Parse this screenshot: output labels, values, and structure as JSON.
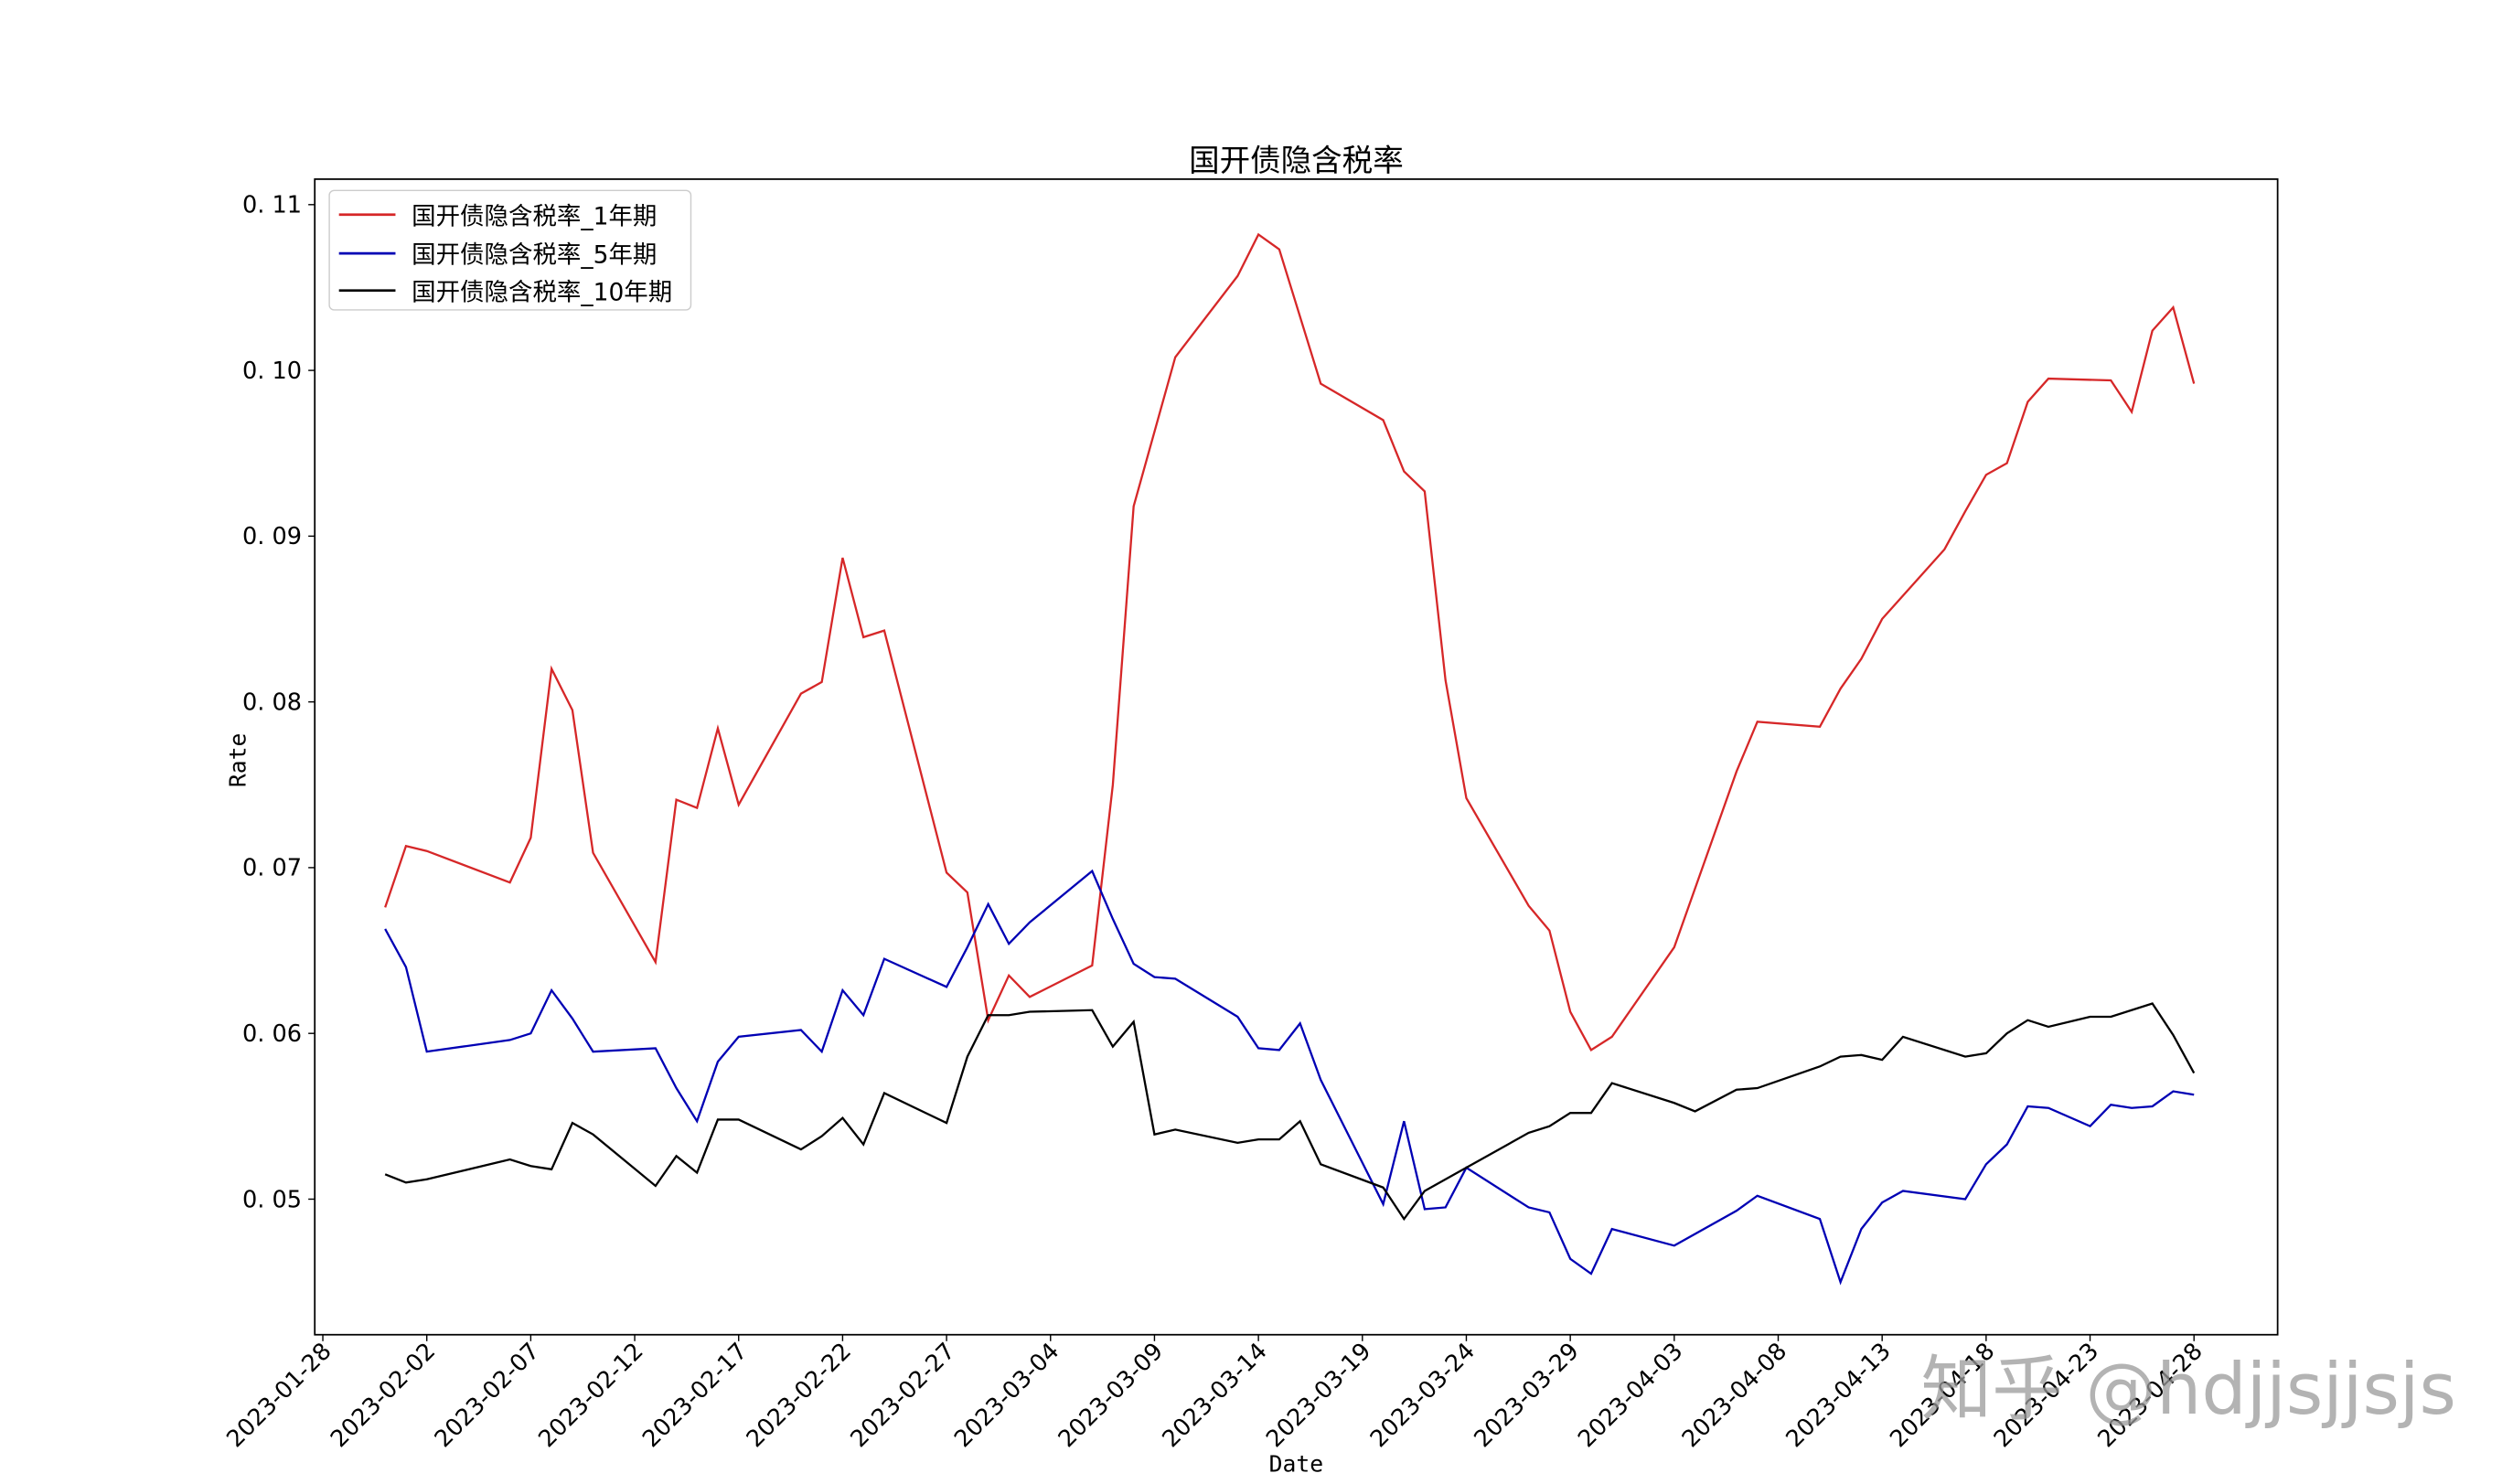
{
  "chart_data": {
    "type": "line",
    "title": "国开债隐含税率",
    "xlabel": "Date",
    "ylabel": "Rate",
    "ylim": [
      0.0418,
      0.1117
    ],
    "xlim": [
      "2023-01-28",
      "2023-05-03"
    ],
    "grid": false,
    "legend_position": "upper left",
    "y_ticks": [
      "0.05",
      "0.06",
      "0.07",
      "0.08",
      "0.09",
      "0.10",
      "0.11"
    ],
    "y_tick_values": [
      0.05,
      0.06,
      0.07,
      0.08,
      0.09,
      0.1,
      0.11
    ],
    "x_ticks": [
      "2023-01-28",
      "2023-02-02",
      "2023-02-07",
      "2023-02-12",
      "2023-02-17",
      "2023-02-22",
      "2023-02-27",
      "2023-03-04",
      "2023-03-09",
      "2023-03-14",
      "2023-03-19",
      "2023-03-24",
      "2023-03-29",
      "2023-04-03",
      "2023-04-08",
      "2023-04-13",
      "2023-04-18",
      "2023-04-23",
      "2023-04-28"
    ],
    "series": [
      {
        "name": "国开债隐含税率_1年期",
        "color": "#d62728",
        "x": [
          "2023-01-31",
          "2023-02-01",
          "2023-02-02",
          "2023-02-06",
          "2023-02-07",
          "2023-02-08",
          "2023-02-09",
          "2023-02-10",
          "2023-02-13",
          "2023-02-14",
          "2023-02-15",
          "2023-02-16",
          "2023-02-17",
          "2023-02-20",
          "2023-02-21",
          "2023-02-22",
          "2023-02-23",
          "2023-02-24",
          "2023-02-27",
          "2023-02-28",
          "2023-03-01",
          "2023-03-02",
          "2023-03-03",
          "2023-03-06",
          "2023-03-07",
          "2023-03-08",
          "2023-03-09",
          "2023-03-10",
          "2023-03-13",
          "2023-03-14",
          "2023-03-15",
          "2023-03-17",
          "2023-03-20",
          "2023-03-21",
          "2023-03-22",
          "2023-03-23",
          "2023-03-24",
          "2023-03-27",
          "2023-03-28",
          "2023-03-29",
          "2023-03-30",
          "2023-03-31",
          "2023-04-03",
          "2023-04-06",
          "2023-04-07",
          "2023-04-10",
          "2023-04-11",
          "2023-04-12",
          "2023-04-13",
          "2023-04-16",
          "2023-04-17",
          "2023-04-18",
          "2023-04-19",
          "2023-04-20",
          "2023-04-21",
          "2023-04-24",
          "2023-04-25",
          "2023-04-26",
          "2023-04-27",
          "2023-04-28"
        ],
        "values": [
          0.0676,
          0.0713,
          0.071,
          0.0691,
          0.0718,
          0.082,
          0.0795,
          0.0709,
          0.0643,
          0.0741,
          0.0736,
          0.0784,
          0.0738,
          0.0805,
          0.0812,
          0.0887,
          0.0839,
          0.0843,
          0.0697,
          0.0685,
          0.0608,
          0.0635,
          0.0622,
          0.0641,
          0.075,
          0.0918,
          0.0963,
          0.1008,
          0.1057,
          0.1082,
          0.1073,
          0.0992,
          0.097,
          0.0939,
          0.0927,
          0.0813,
          0.0742,
          0.0677,
          0.0662,
          0.0613,
          0.059,
          0.0598,
          0.0652,
          0.0758,
          0.0788,
          0.0785,
          0.0808,
          0.0826,
          0.085,
          0.0892,
          0.0915,
          0.0937,
          0.0944,
          0.0981,
          0.0995,
          0.0994,
          0.0975,
          0.1024,
          0.1038,
          0.0992
        ]
      },
      {
        "name": "国开债隐含税率_5年期",
        "color": "#0000b4",
        "x": [
          "2023-01-31",
          "2023-02-01",
          "2023-02-02",
          "2023-02-06",
          "2023-02-07",
          "2023-02-08",
          "2023-02-09",
          "2023-02-10",
          "2023-02-13",
          "2023-02-14",
          "2023-02-15",
          "2023-02-16",
          "2023-02-17",
          "2023-02-20",
          "2023-02-21",
          "2023-02-22",
          "2023-02-23",
          "2023-02-24",
          "2023-02-27",
          "2023-02-28",
          "2023-03-01",
          "2023-03-02",
          "2023-03-03",
          "2023-03-06",
          "2023-03-07",
          "2023-03-08",
          "2023-03-09",
          "2023-03-10",
          "2023-03-13",
          "2023-03-14",
          "2023-03-15",
          "2023-03-16",
          "2023-03-17",
          "2023-03-20",
          "2023-03-21",
          "2023-03-22",
          "2023-03-23",
          "2023-03-24",
          "2023-03-27",
          "2023-03-28",
          "2023-03-29",
          "2023-03-30",
          "2023-03-31",
          "2023-04-03",
          "2023-04-06",
          "2023-04-07",
          "2023-04-10",
          "2023-04-11",
          "2023-04-12",
          "2023-04-13",
          "2023-04-14",
          "2023-04-17",
          "2023-04-18",
          "2023-04-19",
          "2023-04-20",
          "2023-04-21",
          "2023-04-23",
          "2023-04-24",
          "2023-04-25",
          "2023-04-26",
          "2023-04-27",
          "2023-04-28"
        ],
        "values": [
          0.0663,
          0.064,
          0.0589,
          0.0596,
          0.06,
          0.0626,
          0.0609,
          0.0589,
          0.0591,
          0.0567,
          0.0547,
          0.0583,
          0.0598,
          0.0602,
          0.0589,
          0.0626,
          0.0611,
          0.0645,
          0.0628,
          0.0652,
          0.0678,
          0.0654,
          0.0667,
          0.0698,
          0.0669,
          0.0642,
          0.0634,
          0.0633,
          0.061,
          0.0591,
          0.059,
          0.0606,
          0.0572,
          0.0497,
          0.0547,
          0.0494,
          0.0495,
          0.0519,
          0.0495,
          0.0492,
          0.0464,
          0.0455,
          0.0482,
          0.0472,
          0.0493,
          0.0502,
          0.0488,
          0.045,
          0.0482,
          0.0498,
          0.0505,
          0.05,
          0.0521,
          0.0533,
          0.0556,
          0.0555,
          0.0544,
          0.0557,
          0.0555,
          0.0556,
          0.0565,
          0.0563
        ]
      },
      {
        "name": "国开债隐含税率_10年期",
        "color": "#000000",
        "x": [
          "2023-01-31",
          "2023-02-01",
          "2023-02-02",
          "2023-02-06",
          "2023-02-07",
          "2023-02-08",
          "2023-02-09",
          "2023-02-10",
          "2023-02-13",
          "2023-02-14",
          "2023-02-15",
          "2023-02-16",
          "2023-02-17",
          "2023-02-20",
          "2023-02-21",
          "2023-02-22",
          "2023-02-23",
          "2023-02-24",
          "2023-02-27",
          "2023-02-28",
          "2023-03-01",
          "2023-03-02",
          "2023-03-03",
          "2023-03-06",
          "2023-03-07",
          "2023-03-08",
          "2023-03-09",
          "2023-03-10",
          "2023-03-13",
          "2023-03-14",
          "2023-03-15",
          "2023-03-16",
          "2023-03-17",
          "2023-03-20",
          "2023-03-21",
          "2023-03-22",
          "2023-03-23",
          "2023-03-24",
          "2023-03-27",
          "2023-03-28",
          "2023-03-29",
          "2023-03-30",
          "2023-03-31",
          "2023-04-03",
          "2023-04-04",
          "2023-04-06",
          "2023-04-07",
          "2023-04-10",
          "2023-04-11",
          "2023-04-12",
          "2023-04-13",
          "2023-04-14",
          "2023-04-17",
          "2023-04-18",
          "2023-04-19",
          "2023-04-20",
          "2023-04-21",
          "2023-04-23",
          "2023-04-24",
          "2023-04-26",
          "2023-04-27",
          "2023-04-28"
        ],
        "values": [
          0.0515,
          0.051,
          0.0512,
          0.0524,
          0.052,
          0.0518,
          0.0546,
          0.0539,
          0.0508,
          0.0526,
          0.0516,
          0.0548,
          0.0548,
          0.053,
          0.0538,
          0.0549,
          0.0533,
          0.0564,
          0.0546,
          0.0586,
          0.0611,
          0.0611,
          0.0613,
          0.0614,
          0.0592,
          0.0607,
          0.0539,
          0.0542,
          0.0534,
          0.0536,
          0.0536,
          0.0547,
          0.0521,
          0.0507,
          0.0488,
          0.0505,
          0.0512,
          0.0519,
          0.054,
          0.0544,
          0.0552,
          0.0552,
          0.057,
          0.0558,
          0.0553,
          0.0566,
          0.0567,
          0.058,
          0.0586,
          0.0587,
          0.0584,
          0.0598,
          0.0586,
          0.0588,
          0.06,
          0.0608,
          0.0604,
          0.061,
          0.061,
          0.0618,
          0.0599,
          0.0576
        ]
      }
    ]
  },
  "legend": {
    "items": [
      {
        "label": "国开债隐含税率_1年期",
        "color": "#d62728"
      },
      {
        "label": "国开债隐含税率_5年期",
        "color": "#0000b4"
      },
      {
        "label": "国开债隐含税率_10年期",
        "color": "#000000"
      }
    ]
  },
  "watermark": "知乎 @hdjjsjjsjs"
}
